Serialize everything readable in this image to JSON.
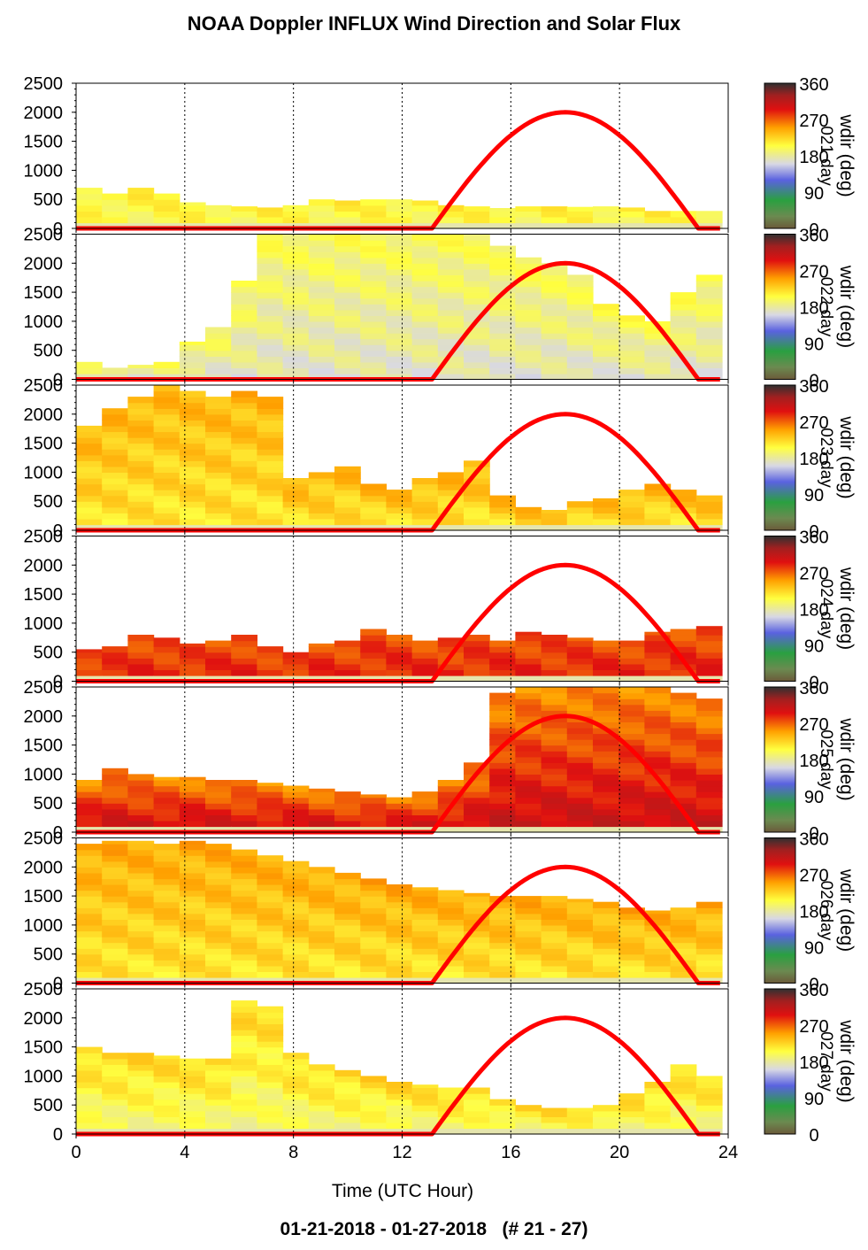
{
  "title": "NOAA Doppler INFLUX Wind Direction and Solar Flux",
  "footer": "01-21-2018 - 01-27-2018   (# 21 - 27)",
  "xlabel": "Time (UTC Hour)",
  "colorbar_label": "wdir (deg)",
  "colorbar_ticks": [
    "0",
    "90",
    "180",
    "270",
    "360"
  ],
  "colorbar_stops": [
    {
      "deg": 0,
      "color": "#6b5a3a"
    },
    {
      "deg": 30,
      "color": "#6b8a50"
    },
    {
      "deg": 70,
      "color": "#2aa040"
    },
    {
      "deg": 120,
      "color": "#5a62e0"
    },
    {
      "deg": 160,
      "color": "#d8d8e4"
    },
    {
      "deg": 205,
      "color": "#ffff40"
    },
    {
      "deg": 250,
      "color": "#ffa000"
    },
    {
      "deg": 295,
      "color": "#e01010"
    },
    {
      "deg": 330,
      "color": "#a02020"
    },
    {
      "deg": 360,
      "color": "#303030"
    }
  ],
  "chart_data": [
    {
      "type": "heatmap",
      "day_label": "021 day",
      "xlim": [
        0,
        24
      ],
      "ylim": [
        0,
        2500
      ],
      "xticks": [
        0,
        4,
        8,
        12,
        16,
        20,
        24
      ],
      "yticks": [
        0,
        500,
        1000,
        1500,
        2000,
        2500
      ],
      "top_height_m": [
        700,
        620,
        700,
        600,
        450,
        420,
        380,
        360,
        400,
        520,
        480,
        500,
        520,
        480,
        400,
        380,
        350,
        380,
        380,
        370,
        380,
        360,
        340,
        320,
        300
      ],
      "direction_low_deg": 200,
      "direction_high_deg": 210,
      "solar_flux": {
        "rise_hour": 13.1,
        "peak_hour": 18.0,
        "set_hour": 22.9,
        "peak_height_m": 2000,
        "color": "#ff0000"
      }
    },
    {
      "type": "heatmap",
      "day_label": "022 day",
      "xlim": [
        0,
        24
      ],
      "ylim": [
        0,
        2500
      ],
      "xticks": [
        0,
        4,
        8,
        12,
        16,
        20,
        24
      ],
      "yticks": [
        0,
        500,
        1000,
        1500,
        2000,
        2500
      ],
      "top_height_m": [
        300,
        220,
        250,
        300,
        650,
        900,
        1700,
        2500,
        2500,
        2500,
        2500,
        2500,
        2500,
        2500,
        2500,
        2500,
        2300,
        2100,
        2000,
        1800,
        1300,
        1100,
        1000,
        1500,
        1800
      ],
      "direction_low_deg": 170,
      "direction_high_deg": 200,
      "solar_flux": {
        "rise_hour": 13.1,
        "peak_hour": 18.0,
        "set_hour": 22.9,
        "peak_height_m": 2000,
        "color": "#ff0000"
      }
    },
    {
      "type": "heatmap",
      "day_label": "023 day",
      "xlim": [
        0,
        24
      ],
      "ylim": [
        0,
        2500
      ],
      "xticks": [
        0,
        4,
        8,
        12,
        16,
        20,
        24
      ],
      "yticks": [
        0,
        500,
        1000,
        1500,
        2000,
        2500
      ],
      "top_height_m": [
        1800,
        2100,
        2300,
        2500,
        2400,
        2300,
        2400,
        2300,
        900,
        1000,
        1100,
        800,
        700,
        900,
        1000,
        1200,
        600,
        400,
        350,
        500,
        550,
        700,
        800,
        700,
        600
      ],
      "direction_low_deg": 215,
      "direction_high_deg": 240,
      "solar_flux": {
        "rise_hour": 13.1,
        "peak_hour": 18.0,
        "set_hour": 22.9,
        "peak_height_m": 2000,
        "color": "#ff0000"
      }
    },
    {
      "type": "heatmap",
      "day_label": "024 day",
      "xlim": [
        0,
        24
      ],
      "ylim": [
        0,
        2500
      ],
      "xticks": [
        0,
        4,
        8,
        12,
        16,
        20,
        24
      ],
      "yticks": [
        0,
        500,
        1000,
        1500,
        2000,
        2500
      ],
      "top_height_m": [
        550,
        600,
        800,
        750,
        650,
        700,
        800,
        600,
        500,
        650,
        700,
        900,
        800,
        700,
        750,
        800,
        700,
        850,
        800,
        750,
        700,
        700,
        850,
        900,
        950
      ],
      "direction_low_deg": 290,
      "direction_high_deg": 275,
      "solar_flux": {
        "rise_hour": 13.1,
        "peak_hour": 18.0,
        "set_hour": 22.9,
        "peak_height_m": 2000,
        "color": "#ff0000"
      }
    },
    {
      "type": "heatmap",
      "day_label": "025 day",
      "xlim": [
        0,
        24
      ],
      "ylim": [
        0,
        2500
      ],
      "xticks": [
        0,
        4,
        8,
        12,
        16,
        20,
        24
      ],
      "yticks": [
        0,
        500,
        1000,
        1500,
        2000,
        2500
      ],
      "top_height_m": [
        900,
        1100,
        1000,
        950,
        950,
        900,
        900,
        850,
        800,
        750,
        700,
        650,
        600,
        700,
        900,
        1200,
        2400,
        2500,
        2500,
        2500,
        2500,
        2500,
        2500,
        2400,
        2300
      ],
      "direction_low_deg": 310,
      "direction_high_deg": 255,
      "solar_flux": {
        "rise_hour": 13.1,
        "peak_hour": 18.0,
        "set_hour": 22.9,
        "peak_height_m": 2000,
        "color": "#ff0000"
      }
    },
    {
      "type": "heatmap",
      "day_label": "026 day",
      "xlim": [
        0,
        24
      ],
      "ylim": [
        0,
        2500
      ],
      "xticks": [
        0,
        4,
        8,
        12,
        16,
        20,
        24
      ],
      "yticks": [
        0,
        500,
        1000,
        1500,
        2000,
        2500
      ],
      "top_height_m": [
        2400,
        2450,
        2450,
        2400,
        2450,
        2400,
        2300,
        2200,
        2100,
        2000,
        1900,
        1800,
        1700,
        1650,
        1600,
        1550,
        1500,
        1500,
        1500,
        1450,
        1400,
        1300,
        1250,
        1300,
        1400
      ],
      "direction_low_deg": 215,
      "direction_high_deg": 245,
      "solar_flux": {
        "rise_hour": 13.1,
        "peak_hour": 18.0,
        "set_hour": 22.9,
        "peak_height_m": 2000,
        "color": "#ff0000"
      }
    },
    {
      "type": "heatmap",
      "day_label": "027 day",
      "xlim": [
        0,
        24
      ],
      "ylim": [
        0,
        2500
      ],
      "xticks": [
        0,
        4,
        8,
        12,
        16,
        20,
        24
      ],
      "yticks": [
        0,
        500,
        1000,
        1500,
        2000,
        2500
      ],
      "top_height_m": [
        1500,
        1400,
        1400,
        1350,
        1300,
        1300,
        2300,
        2200,
        1400,
        1200,
        1100,
        1000,
        900,
        850,
        800,
        800,
        600,
        500,
        450,
        450,
        500,
        700,
        900,
        1200,
        1000
      ],
      "direction_low_deg": 190,
      "direction_high_deg": 225,
      "solar_flux": {
        "rise_hour": 13.1,
        "peak_hour": 18.0,
        "set_hour": 22.9,
        "peak_height_m": 2000,
        "color": "#ff0000"
      }
    }
  ]
}
